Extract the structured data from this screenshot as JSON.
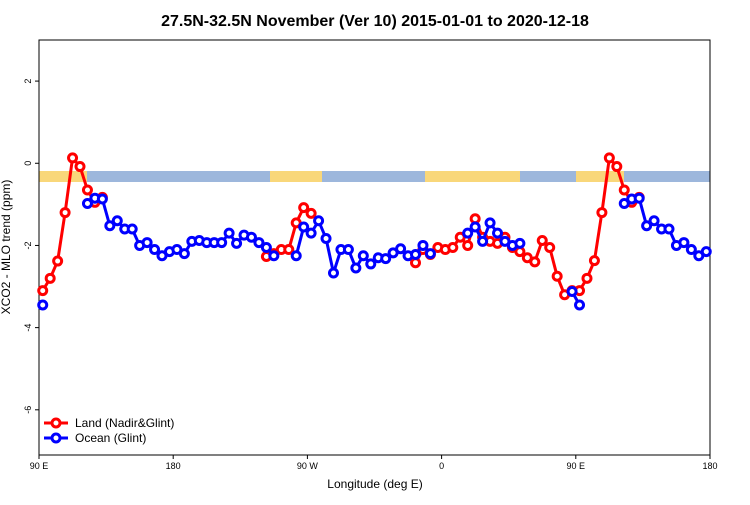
{
  "chart_data": {
    "type": "line",
    "title": "27.5N-32.5N November (Ver 10)   2015-01-01 to 2020-12-18",
    "x_label": "Longitude (deg E)",
    "y_label": "XCO2 - MLO trend (ppm)",
    "xlim": [
      90,
      540
    ],
    "xticks": [
      {
        "value": 90,
        "label": "90 E"
      },
      180,
      {
        "value": 270,
        "label": "90 W"
      },
      {
        "value": 360,
        "label": "0"
      },
      {
        "value": 450,
        "label": "90 E"
      },
      {
        "value": 540,
        "label": "180"
      }
    ],
    "ylim": [
      -7.1,
      3.0
    ],
    "yticks": [
      -6,
      -4,
      -2,
      0,
      2
    ],
    "legend": "bottom-left",
    "series": [
      {
        "name": "Land (Nadir&Glint)",
        "color": "#ff0000",
        "x": [
          92.5,
          97.5,
          102.5,
          107.5,
          112.5,
          117.5,
          122.5,
          127.5,
          132.5,
          137.5,
          242.5,
          247.5,
          252.5,
          257.5,
          262.5,
          267.5,
          272.5,
          277.5,
          342.5,
          347.5,
          352.5,
          357.5,
          362.5,
          367.5,
          372.5,
          377.5,
          382.5,
          387.5,
          392.5,
          397.5,
          402.5,
          407.5,
          412.5,
          417.5,
          422.5,
          427.5,
          432.5,
          437.5,
          442.5,
          447.5,
          452.5,
          457.5,
          462.5,
          467.5,
          472.5,
          477.5,
          482.5,
          487.5,
          492.5
        ],
        "values": [
          -3.1,
          -2.8,
          -2.38,
          -1.2,
          0.13,
          -0.08,
          -0.65,
          -0.95,
          -0.83,
          null,
          -2.27,
          -2.2,
          -2.1,
          -2.1,
          -1.45,
          -1.08,
          -1.22,
          null,
          -2.42,
          -2.1,
          -2.22,
          -2.05,
          -2.1,
          -2.05,
          -1.8,
          -2.0,
          -1.35,
          -1.8,
          -1.9,
          -1.95,
          -1.8,
          -2.05,
          -2.15,
          -2.3,
          -2.4,
          -1.88,
          -2.05,
          -2.75,
          -3.2,
          -3.1,
          -3.1,
          -2.8,
          -2.37,
          -1.2,
          0.13,
          -0.08,
          -0.65,
          -0.95,
          -0.83
        ]
      },
      {
        "name": "Ocean (Glint)",
        "color": "#0000ff",
        "x": [
          92.5,
          117.5,
          122.5,
          127.5,
          132.5,
          137.5,
          142.5,
          147.5,
          152.5,
          157.5,
          162.5,
          167.5,
          172.5,
          177.5,
          182.5,
          187.5,
          192.5,
          197.5,
          202.5,
          207.5,
          212.5,
          217.5,
          222.5,
          227.5,
          232.5,
          237.5,
          242.5,
          247.5,
          252.5,
          262.5,
          267.5,
          272.5,
          277.5,
          282.5,
          287.5,
          292.5,
          297.5,
          302.5,
          307.5,
          312.5,
          317.5,
          322.5,
          327.5,
          332.5,
          337.5,
          342.5,
          347.5,
          352.5,
          357.5,
          377.5,
          382.5,
          387.5,
          392.5,
          397.5,
          402.5,
          407.5,
          412.5,
          417.5,
          447.5,
          452.5,
          457.5,
          482.5,
          487.5,
          492.5,
          497.5,
          502.5,
          507.5,
          512.5,
          517.5,
          522.5,
          527.5,
          532.5,
          537.5
        ],
        "values": [
          -3.45,
          null,
          -0.98,
          -0.85,
          -0.87,
          -1.52,
          -1.4,
          -1.6,
          -1.6,
          -2.0,
          -1.93,
          -2.1,
          -2.25,
          -2.15,
          -2.1,
          -2.2,
          -1.9,
          -1.88,
          -1.93,
          -1.93,
          -1.93,
          -1.7,
          -1.95,
          -1.75,
          -1.8,
          -1.93,
          -2.05,
          -2.25,
          null,
          -2.25,
          -1.55,
          -1.7,
          -1.4,
          -1.83,
          -2.67,
          -2.1,
          -2.1,
          -2.55,
          -2.25,
          -2.45,
          -2.3,
          -2.32,
          -2.18,
          -2.08,
          -2.25,
          -2.22,
          -2.0,
          -2.2,
          null,
          -1.7,
          -1.55,
          -1.9,
          -1.45,
          -1.7,
          -1.9,
          -2.0,
          -1.95,
          null,
          -3.12,
          -3.45,
          null,
          -0.98,
          -0.87,
          -0.85,
          -1.52,
          -1.4,
          -1.6,
          -1.6,
          -2.0,
          -1.93,
          -2.1,
          -2.25,
          -2.15
        ]
      }
    ]
  }
}
